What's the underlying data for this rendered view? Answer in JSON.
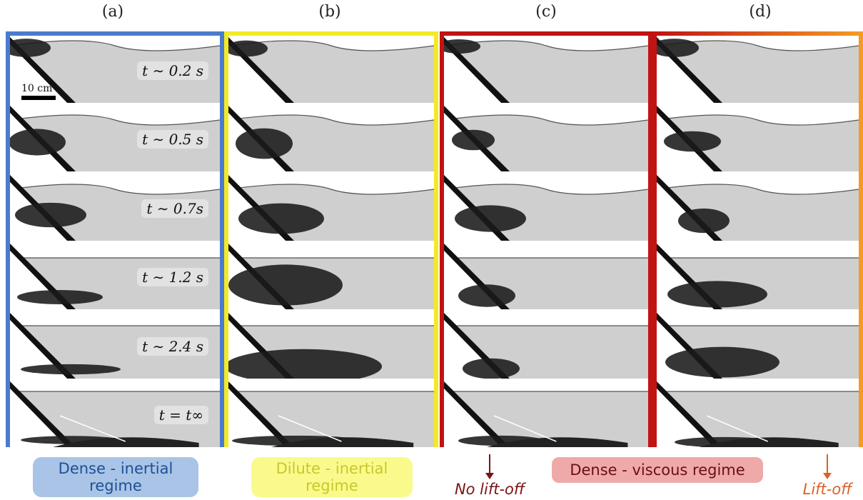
{
  "columns": [
    {
      "label": "(a)"
    },
    {
      "label": "(b)"
    },
    {
      "label": "(c)"
    },
    {
      "label": "(d)"
    }
  ],
  "time_labels": [
    "t ∼ 0.2 s",
    "t ∼ 0.5 s",
    "t ∼ 0.7s",
    "t ∼ 1.2 s",
    "t ∼ 2.4 s",
    "t = t∞"
  ],
  "scale_bar": {
    "label": "10 cm"
  },
  "regimes": [
    {
      "label": "Dense - inertial regime",
      "color": "#a9c4e6",
      "text_color": "#1d4f97"
    },
    {
      "label": "Dilute - inertial regime",
      "color": "#fafa8c",
      "text_color": "#c9c72a"
    },
    {
      "label": "Dense - viscous regime",
      "color": "#efa9a9",
      "text_color": "#6a1010"
    }
  ],
  "annotations": {
    "no_lift_off": "No lift-off",
    "lift_off": "Lift-off",
    "no_lift_off_color": "#7a1414",
    "lift_off_color": "#d9622a"
  },
  "border_colors": {
    "a": "#4a7ccc",
    "b": "#f4ea24",
    "c": "#c21313",
    "d_start": "#c21313",
    "d_end": "#f59a24"
  }
}
